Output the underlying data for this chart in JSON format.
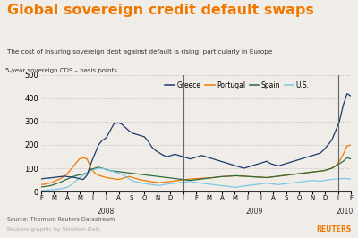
{
  "title": "Global sovereign credit default swaps",
  "subtitle": "The cost of insuring sovereign debt against default is rising, particularly in Europe",
  "ylabel": "5-year sovereign CDS – basis points",
  "title_color": "#F07800",
  "background_color": "#f0ede8",
  "plot_bg_color": "#f0ede8",
  "ylim": [
    0,
    500
  ],
  "yticks": [
    0,
    100,
    200,
    300,
    400,
    500
  ],
  "legend": [
    "Greece",
    "Portugal",
    "Spain",
    "U.S."
  ],
  "legend_colors": [
    "#1a3a6b",
    "#f07800",
    "#2e6b3e",
    "#7ec8e3"
  ],
  "source_text": "Source: Thomson Reuters Datastream",
  "footer_text": "Reuters graphic by Stephen Daly",
  "months_2008": [
    "F",
    "M",
    "A",
    "M",
    "J",
    "J",
    "A",
    "S",
    "O",
    "N",
    "D"
  ],
  "months_2009": [
    "J",
    "F",
    "M",
    "A",
    "M",
    "J",
    "J",
    "A",
    "S",
    "O",
    "N",
    "D"
  ],
  "months_2010": [
    "J",
    "F"
  ],
  "greece": [
    54,
    57,
    58,
    60,
    62,
    64,
    66,
    64,
    62,
    60,
    55,
    52,
    70,
    120,
    160,
    200,
    220,
    230,
    260,
    290,
    295,
    290,
    275,
    260,
    250,
    245,
    240,
    235,
    215,
    190,
    175,
    165,
    155,
    150,
    155,
    160,
    155,
    150,
    145,
    140,
    145,
    150,
    155,
    150,
    145,
    140,
    135,
    130,
    125,
    120,
    115,
    110,
    105,
    100,
    105,
    110,
    115,
    120,
    125,
    130,
    120,
    115,
    110,
    115,
    120,
    125,
    130,
    135,
    140,
    145,
    150,
    155,
    160,
    165,
    180,
    200,
    220,
    260,
    300,
    370,
    420,
    410
  ],
  "portugal": [
    30,
    32,
    35,
    40,
    48,
    55,
    65,
    80,
    100,
    120,
    140,
    145,
    140,
    100,
    80,
    70,
    65,
    60,
    58,
    55,
    52,
    55,
    60,
    65,
    60,
    55,
    50,
    48,
    45,
    42,
    40,
    38,
    40,
    42,
    44,
    46,
    48,
    50,
    52,
    54,
    55,
    56,
    57,
    58,
    59,
    60,
    62,
    64,
    65,
    66,
    67,
    68,
    67,
    66,
    65,
    64,
    63,
    62,
    61,
    60,
    62,
    64,
    66,
    68,
    70,
    72,
    74,
    76,
    78,
    80,
    82,
    84,
    86,
    88,
    90,
    95,
    100,
    110,
    130,
    160,
    195,
    200
  ],
  "spain": [
    20,
    22,
    24,
    28,
    34,
    40,
    48,
    55,
    62,
    68,
    72,
    75,
    80,
    95,
    100,
    105,
    100,
    95,
    90,
    88,
    86,
    84,
    82,
    80,
    78,
    76,
    74,
    72,
    70,
    68,
    66,
    64,
    62,
    60,
    58,
    56,
    54,
    52,
    50,
    48,
    50,
    52,
    54,
    56,
    58,
    60,
    62,
    64,
    65,
    66,
    67,
    68,
    67,
    66,
    65,
    64,
    63,
    62,
    61,
    60,
    62,
    64,
    66,
    68,
    70,
    72,
    74,
    76,
    78,
    80,
    82,
    84,
    86,
    88,
    90,
    95,
    100,
    110,
    120,
    130,
    145,
    140
  ],
  "us": [
    5,
    6,
    7,
    8,
    10,
    12,
    15,
    20,
    30,
    45,
    60,
    70,
    80,
    90,
    95,
    100,
    100,
    95,
    90,
    85,
    80,
    75,
    65,
    55,
    45,
    42,
    38,
    35,
    32,
    30,
    28,
    26,
    30,
    32,
    34,
    36,
    38,
    40,
    42,
    44,
    40,
    38,
    36,
    34,
    32,
    30,
    28,
    26,
    24,
    22,
    20,
    18,
    22,
    24,
    26,
    28,
    30,
    32,
    34,
    36,
    34,
    32,
    30,
    32,
    34,
    36,
    38,
    40,
    42,
    44,
    46,
    48,
    46,
    44,
    48,
    50,
    52,
    54,
    55,
    56,
    55,
    54
  ]
}
